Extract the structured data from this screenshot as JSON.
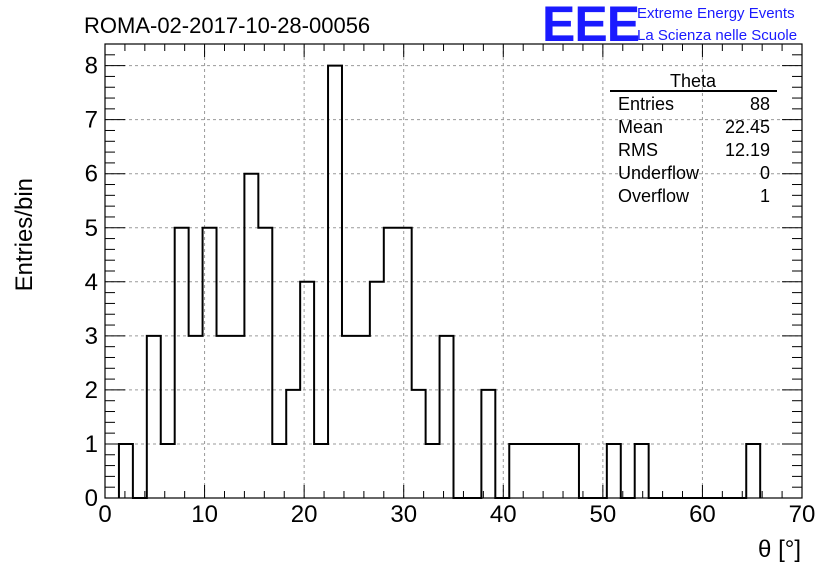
{
  "chart_data": {
    "type": "bar",
    "title": "ROMA-02-2017-10-28-00056",
    "xlabel": "θ [°]",
    "ylabel": "Entries/bin",
    "xlim": [
      0,
      70
    ],
    "ylim": [
      0,
      8.4
    ],
    "grid": true,
    "bin_edges": [
      1.4,
      2.8,
      4.2,
      5.6,
      7.0,
      8.4,
      9.8,
      11.2,
      12.6,
      14.0,
      15.4,
      16.8,
      18.2,
      19.6,
      21.0,
      22.4,
      23.8,
      25.2,
      26.6,
      28.0,
      29.4,
      30.8,
      32.2,
      33.6,
      35.0,
      36.4,
      37.8,
      39.2,
      40.6,
      42.0,
      43.4,
      44.8,
      46.2,
      47.6,
      49.0,
      50.4,
      51.8,
      53.2,
      54.6,
      56.0,
      57.4,
      58.8,
      60.2,
      61.6,
      63.0,
      64.4,
      65.8
    ],
    "values": [
      1,
      0,
      3,
      1,
      5,
      3,
      5,
      3,
      3,
      6,
      5,
      1,
      2,
      4,
      1,
      8,
      3,
      3,
      4,
      5,
      5,
      2,
      1,
      3,
      0,
      0,
      2,
      0,
      1,
      1,
      1,
      1,
      1,
      0,
      0,
      1,
      0,
      1,
      0,
      0,
      0,
      0,
      0,
      0,
      0,
      1
    ],
    "x_ticks": [
      "0",
      "10",
      "20",
      "30",
      "40",
      "50",
      "60",
      "70"
    ],
    "y_ticks": [
      "0",
      "1",
      "2",
      "3",
      "4",
      "5",
      "6",
      "7",
      "8"
    ],
    "stats_box": {
      "title": "Theta",
      "rows": [
        {
          "label": "Entries",
          "value": "88"
        },
        {
          "label": "Mean",
          "value": "22.45"
        },
        {
          "label": "RMS",
          "value": "12.19"
        },
        {
          "label": "Underflow",
          "value": "0"
        },
        {
          "label": "Overflow",
          "value": "1"
        }
      ]
    }
  },
  "logo": {
    "mark": "EEE",
    "line1": "Extreme Energy Events",
    "line2": "La Scienza nelle Scuole"
  },
  "colors": {
    "logo": "#1a1aff",
    "histogram": "#000000",
    "grid": "#9a9a9a"
  }
}
